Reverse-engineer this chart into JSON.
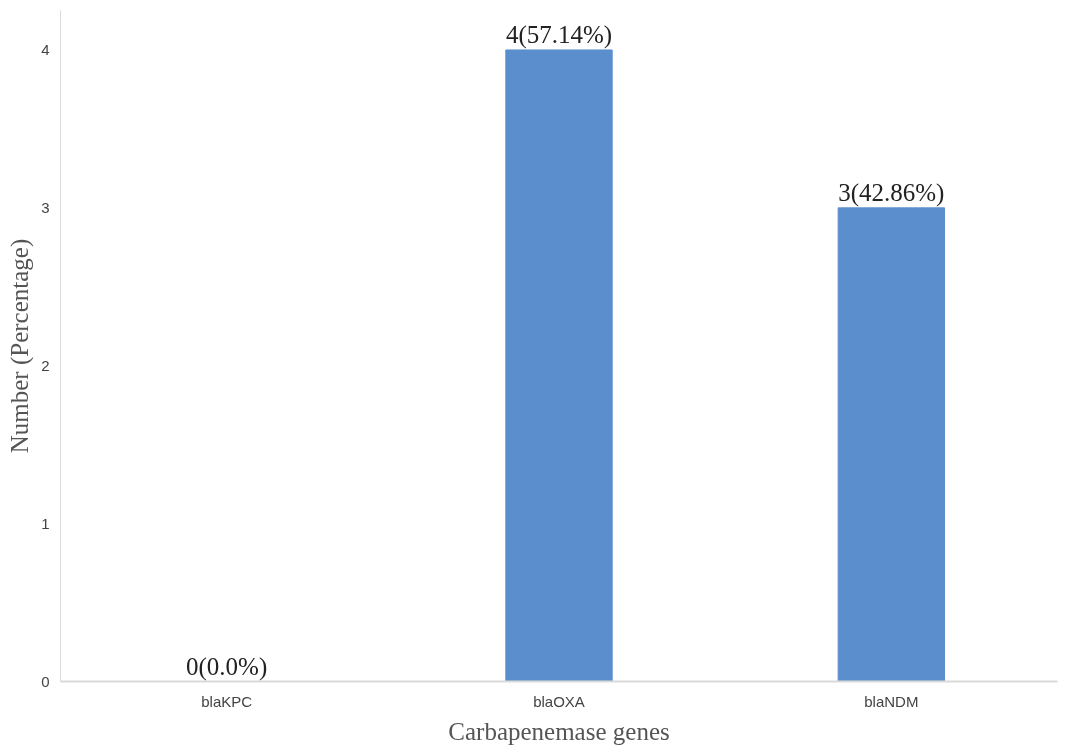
{
  "chart_data": {
    "type": "bar",
    "xlabel": "Carbapenemase genes",
    "ylabel": "Number (Percentage)",
    "categories": [
      "blaKPC",
      "blaOXA",
      "blaNDM"
    ],
    "values": [
      0,
      4,
      3
    ],
    "value_labels": [
      "0(0.0%)",
      "4(57.14%)",
      "3(42.86%)"
    ],
    "color": "#5a8ecc",
    "ylim": [
      0,
      4.25
    ],
    "yticks": [
      0,
      1,
      2,
      3,
      4
    ],
    "grid": false
  }
}
